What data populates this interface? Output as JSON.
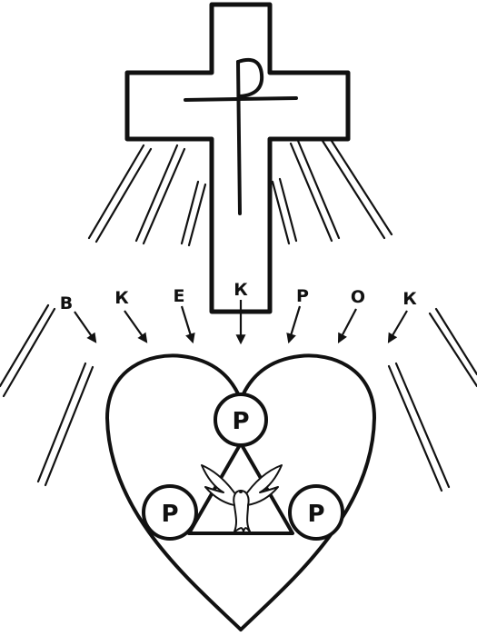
{
  "colors": {
    "ink": "#111111",
    "paper": "#ffffff"
  },
  "top_letters": [
    "В",
    "К",
    "Е",
    "К",
    "Р",
    "О",
    "К"
  ],
  "circle_letters": {
    "top": "Р",
    "left": "Р",
    "right": "Р"
  },
  "icons": [
    "cross-icon",
    "chi-rho-icon",
    "heart-icon",
    "triangle-icon",
    "dove-icon"
  ]
}
